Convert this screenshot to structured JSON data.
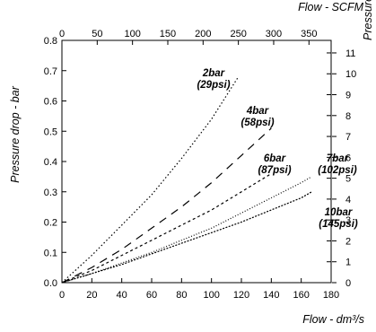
{
  "chart_data": {
    "type": "line",
    "x_axis": {
      "label": "Flow - dm³/s",
      "min": 0,
      "max": 180,
      "ticks": [
        0,
        20,
        40,
        60,
        80,
        100,
        120,
        140,
        160,
        180
      ],
      "tick_labels": [
        "0",
        "20",
        "40",
        "60",
        "80",
        "100",
        "120",
        "140",
        "160",
        "180"
      ]
    },
    "x2_axis": {
      "label": "Flow - SCFM",
      "min": 0,
      "max": 381.4,
      "ticks": [
        0,
        50,
        100,
        150,
        200,
        250,
        300,
        350
      ],
      "tick_labels": [
        "0",
        "50",
        "100",
        "150",
        "200",
        "250",
        "300",
        "350"
      ]
    },
    "y_axis": {
      "label": "Pressure drop - bar",
      "min": 0,
      "max": 0.8,
      "ticks": [
        0,
        0.1,
        0.2,
        0.3,
        0.4,
        0.5,
        0.6,
        0.7,
        0.8
      ],
      "tick_labels": [
        "0.0",
        "0.1",
        "0.2",
        "0.3",
        "0.4",
        "0.5",
        "0.6",
        "0.7",
        "0.8"
      ]
    },
    "y2_axis": {
      "label": "Pressure drop - psi",
      "min": 0,
      "max": 11.6,
      "ticks": [
        0,
        1,
        2,
        3,
        4,
        5,
        6,
        7,
        8,
        9,
        10,
        11
      ],
      "tick_labels": [
        "0",
        "1",
        "2",
        "3",
        "4",
        "5",
        "6",
        "7",
        "8",
        "9",
        "10",
        "11"
      ]
    },
    "grid": false,
    "legend": "inline labels",
    "series": [
      {
        "name": "2bar",
        "name2": "(29psi)",
        "dash": "1.5,2.5",
        "x": [
          0,
          20,
          40,
          60,
          80,
          100,
          118
        ],
        "y": [
          0,
          0.09,
          0.19,
          0.29,
          0.41,
          0.54,
          0.68
        ]
      },
      {
        "name": "4bar",
        "name2": "(58psi)",
        "dash": "9,7",
        "x": [
          0,
          20,
          40,
          60,
          80,
          100,
          120,
          140
        ],
        "y": [
          0,
          0.05,
          0.11,
          0.18,
          0.25,
          0.33,
          0.42,
          0.51
        ]
      },
      {
        "name": "6bar",
        "name2": "(87psi)",
        "dash": "3,3",
        "x": [
          0,
          20,
          40,
          60,
          80,
          100,
          120,
          140
        ],
        "y": [
          0,
          0.04,
          0.09,
          0.14,
          0.19,
          0.24,
          0.3,
          0.36
        ]
      },
      {
        "name": "7bar",
        "name2": "(102psi)",
        "dash": "1,2",
        "x": [
          0,
          20,
          40,
          60,
          80,
          100,
          120,
          140,
          160,
          167
        ],
        "y": [
          0,
          0.03,
          0.065,
          0.1,
          0.14,
          0.18,
          0.23,
          0.28,
          0.33,
          0.35
        ]
      },
      {
        "name": "10bar",
        "name2": "(145psi)",
        "dash": "2,1.5",
        "x": [
          0,
          20,
          40,
          60,
          80,
          100,
          120,
          140,
          160,
          167
        ],
        "y": [
          0,
          0.03,
          0.06,
          0.095,
          0.13,
          0.165,
          0.2,
          0.24,
          0.28,
          0.3
        ]
      }
    ]
  }
}
